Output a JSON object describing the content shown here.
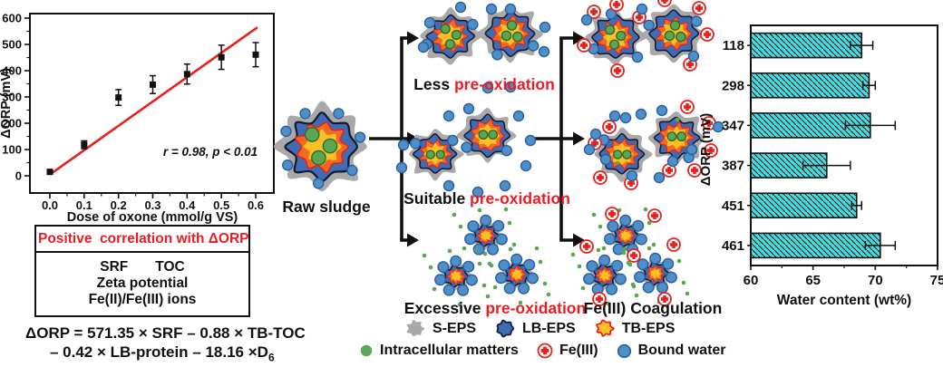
{
  "colors": {
    "accent_red": "#e8211d",
    "label_red": "#ed1c24",
    "bar_fill": "#3fe0e4",
    "s_eps": "#a9a9a9",
    "lb_eps": "#3f6db5",
    "lb_outline": "#141b33",
    "tb_core": "#fcbf26",
    "tb_rim": "#f26a21",
    "green": "#5ba653",
    "green_dark": "#2f6b2f",
    "water": "#4e8fca",
    "water_dark": "#2a5f9e",
    "ink": "#111111"
  },
  "icons": {
    "s_eps": "gray-blob",
    "lb_eps": "blue-blob",
    "tb_eps": "orange-blob-red-outline",
    "intracellular": "green-dot",
    "fe3": "red-cross-circle",
    "bound_water": "blue-dot"
  },
  "chart_data": [
    {
      "id": "orp-vs-oxone-dose",
      "type": "scatter",
      "xlabel": "Dose of oxone (mmol/g VS)",
      "ylabel": "ΔORP (mV)",
      "xticks": [
        0.0,
        0.1,
        0.2,
        0.3,
        0.4,
        0.5,
        0.6
      ],
      "yticks": [
        0,
        100,
        200,
        300,
        400,
        500,
        600
      ],
      "xlim": [
        -0.05,
        0.65
      ],
      "ylim": [
        -60,
        620
      ],
      "annotation": "r = 0.98, p < 0.01",
      "points": [
        {
          "x": 0.0,
          "y": 15,
          "err": 6
        },
        {
          "x": 0.1,
          "y": 118,
          "err": 15
        },
        {
          "x": 0.2,
          "y": 298,
          "err": 30
        },
        {
          "x": 0.3,
          "y": 347,
          "err": 34
        },
        {
          "x": 0.4,
          "y": 387,
          "err": 38
        },
        {
          "x": 0.5,
          "y": 451,
          "err": 46
        },
        {
          "x": 0.6,
          "y": 461,
          "err": 46
        }
      ],
      "fit_line": {
        "x0": 0.0,
        "y0": 5,
        "x1": 0.605,
        "y1": 565
      }
    },
    {
      "id": "water-content-vs-orp",
      "type": "bar",
      "orientation": "horizontal",
      "categories": [
        "118",
        "298",
        "347",
        "387",
        "451",
        "461"
      ],
      "values": [
        68.9,
        69.5,
        69.6,
        66.1,
        68.5,
        70.4
      ],
      "errors": [
        0.9,
        0.5,
        2.0,
        1.9,
        0.4,
        1.2
      ],
      "xticks": [
        60,
        65,
        70,
        75
      ],
      "xlim": [
        60,
        75
      ],
      "xlabel": "Water content (wt%)",
      "ylabel": "ΔORP (mV)"
    }
  ],
  "correlation_box": {
    "header": "Positive  correlation with ΔORP",
    "row1_left": "SRF",
    "row1_right": "TOC",
    "row2": "Zeta potential",
    "row3": "Fe(II)/Fe(III) ions"
  },
  "equation": {
    "line1": "ΔORP = 571.35 × SRF – 0.88 × TB-TOC",
    "line2_main": "– 0.42 × LB-protein – 18.16 ×D",
    "line2_sub": "6"
  },
  "diagram": {
    "raw_label": "Raw sludge",
    "less_black": "Less",
    "less_red": "pre-oxidation",
    "suitable_black": "Suitable",
    "suitable_red": "pre-oxidation",
    "excessive_black": "Excessive",
    "excessive_red": "pre-oxidation",
    "coagulation_label": "Fe(III) Coagulation"
  },
  "legend": {
    "s_eps": "S-EPS",
    "lb_eps": "LB-EPS",
    "tb_eps": "TB-EPS",
    "intracellular": "Intracellular matters",
    "fe3": "Fe(III)",
    "bound_water": "Bound water"
  }
}
